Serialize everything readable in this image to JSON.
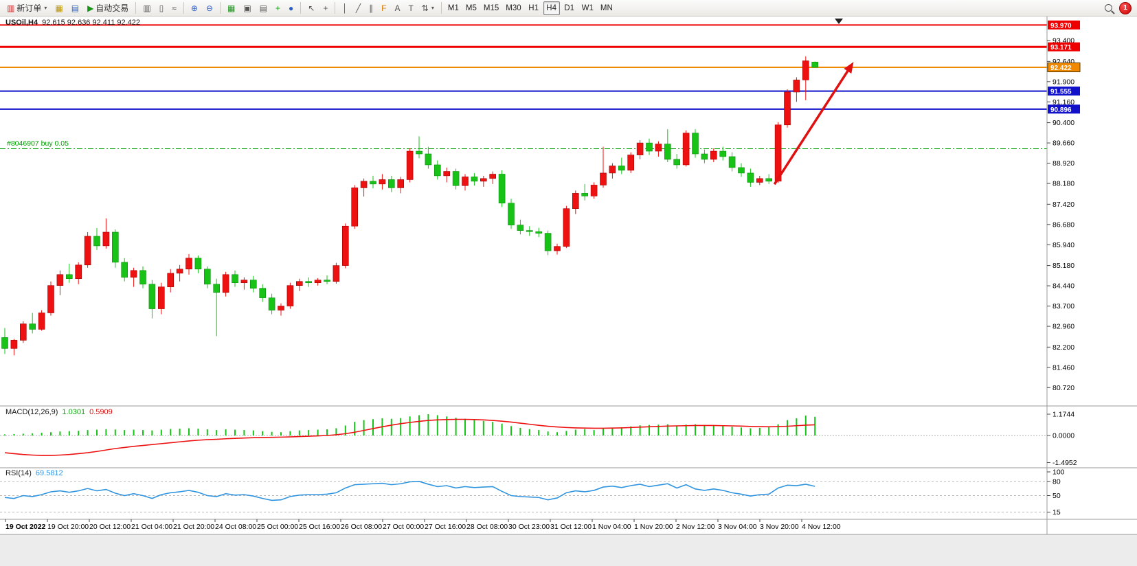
{
  "toolbar": {
    "new_order_label": "新订单",
    "auto_trading_label": "自动交易",
    "timeframes": [
      "M1",
      "M5",
      "M15",
      "M30",
      "H1",
      "H4",
      "D1",
      "W1",
      "MN"
    ],
    "active_timeframe": "H4",
    "notification_count": "1",
    "icons": {
      "new_order": "▥",
      "profile": "▦",
      "market_watch": "▤",
      "auto_trading": "▶",
      "bar_chart": "▥",
      "candles": "▯",
      "line_chart": "≈",
      "zoom_in": "⊕",
      "zoom_out": "⊖",
      "tile": "▦",
      "cascade": "▣",
      "arrange": "▤",
      "new_chart": "+",
      "auto_scroll": "●",
      "cursor": "↖",
      "crosshair": "+",
      "vline": "│",
      "trendline": "╱",
      "channel": "∥",
      "fibonacci": "F",
      "text": "A",
      "label": "T",
      "arrows": "⇅",
      "caret": "▾"
    }
  },
  "chart": {
    "symbol_timeframe": "USOil,H4",
    "ohlc": "92.615 92.636 92.411 92.422",
    "position_label": "#8046907 buy 0.05",
    "macd_name": "MACD(12,26,9)",
    "macd_value": "1.0301",
    "macd_signal": "0.5909",
    "rsi_name": "RSI(14)",
    "rsi_value": "69.5812"
  },
  "chart_data": {
    "type": "candlestick",
    "symbol": "USOil",
    "timeframe": "H4",
    "title": "USOil,H4 92.615 92.636 92.411 92.422",
    "ohlc_current": {
      "open": 92.615,
      "high": 92.636,
      "low": 92.411,
      "close": 92.422
    },
    "ylim": [
      80.05,
      94.28
    ],
    "up_color": "#ee1111",
    "down_color": "#17c317",
    "candles": [
      [
        82.55,
        82.9,
        81.95,
        82.15
      ],
      [
        82.15,
        82.5,
        81.9,
        82.45
      ],
      [
        82.45,
        83.15,
        82.35,
        83.05
      ],
      [
        83.05,
        83.45,
        82.7,
        82.85
      ],
      [
        82.85,
        83.55,
        82.8,
        83.45
      ],
      [
        83.45,
        84.6,
        83.35,
        84.45
      ],
      [
        84.45,
        85.0,
        84.1,
        84.85
      ],
      [
        84.85,
        85.25,
        84.55,
        84.7
      ],
      [
        84.7,
        85.3,
        84.5,
        85.2
      ],
      [
        85.2,
        86.4,
        85.1,
        86.25
      ],
      [
        86.25,
        86.55,
        85.75,
        85.9
      ],
      [
        85.9,
        86.9,
        85.8,
        86.4
      ],
      [
        86.4,
        86.5,
        85.1,
        85.3
      ],
      [
        85.3,
        85.45,
        84.6,
        84.75
      ],
      [
        84.75,
        85.1,
        84.4,
        85.0
      ],
      [
        85.0,
        85.15,
        84.35,
        84.5
      ],
      [
        84.5,
        84.65,
        83.25,
        83.6
      ],
      [
        83.6,
        84.55,
        83.4,
        84.4
      ],
      [
        84.4,
        85.05,
        84.2,
        84.9
      ],
      [
        84.9,
        85.2,
        84.6,
        85.05
      ],
      [
        85.05,
        85.6,
        84.85,
        85.45
      ],
      [
        85.45,
        85.55,
        84.9,
        85.05
      ],
      [
        85.05,
        85.15,
        84.35,
        84.5
      ],
      [
        84.5,
        84.7,
        82.6,
        84.2
      ],
      [
        84.2,
        84.95,
        84.05,
        84.85
      ],
      [
        84.85,
        85.0,
        84.4,
        84.55
      ],
      [
        84.55,
        84.75,
        84.3,
        84.65
      ],
      [
        84.65,
        84.8,
        84.2,
        84.35
      ],
      [
        84.35,
        84.5,
        83.85,
        84.0
      ],
      [
        84.0,
        84.15,
        83.4,
        83.55
      ],
      [
        83.55,
        83.8,
        83.35,
        83.7
      ],
      [
        83.7,
        84.55,
        83.6,
        84.45
      ],
      [
        84.45,
        84.7,
        84.25,
        84.6
      ],
      [
        84.6,
        84.75,
        84.4,
        84.55
      ],
      [
        84.55,
        84.72,
        84.45,
        84.65
      ],
      [
        84.65,
        84.82,
        84.5,
        84.6
      ],
      [
        84.6,
        85.28,
        84.52,
        85.18
      ],
      [
        85.18,
        86.72,
        85.08,
        86.62
      ],
      [
        86.62,
        88.12,
        86.52,
        88.02
      ],
      [
        88.02,
        88.36,
        87.7,
        88.26
      ],
      [
        88.26,
        88.46,
        88.0,
        88.16
      ],
      [
        88.16,
        88.52,
        87.96,
        88.32
      ],
      [
        88.32,
        88.46,
        87.86,
        88.02
      ],
      [
        88.02,
        88.42,
        87.82,
        88.32
      ],
      [
        88.32,
        89.46,
        88.22,
        89.36
      ],
      [
        89.36,
        89.9,
        89.1,
        89.26
      ],
      [
        89.26,
        89.52,
        88.72,
        88.86
      ],
      [
        88.86,
        89.02,
        88.32,
        88.46
      ],
      [
        88.46,
        88.76,
        88.22,
        88.62
      ],
      [
        88.62,
        88.72,
        87.96,
        88.1
      ],
      [
        88.1,
        88.52,
        87.92,
        88.42
      ],
      [
        88.42,
        88.56,
        88.1,
        88.26
      ],
      [
        88.26,
        88.46,
        88.06,
        88.36
      ],
      [
        88.36,
        88.62,
        88.16,
        88.52
      ],
      [
        88.52,
        88.66,
        87.32,
        87.46
      ],
      [
        87.46,
        87.62,
        86.52,
        86.66
      ],
      [
        86.66,
        86.86,
        86.32,
        86.46
      ],
      [
        86.46,
        86.62,
        86.26,
        86.42
      ],
      [
        86.42,
        86.56,
        86.22,
        86.36
      ],
      [
        86.36,
        86.46,
        85.56,
        85.72
      ],
      [
        85.72,
        85.98,
        85.58,
        85.88
      ],
      [
        85.88,
        87.36,
        85.82,
        87.26
      ],
      [
        87.26,
        87.92,
        87.06,
        87.82
      ],
      [
        87.82,
        88.16,
        87.56,
        87.72
      ],
      [
        87.72,
        88.22,
        87.62,
        88.12
      ],
      [
        88.12,
        89.52,
        88.02,
        88.56
      ],
      [
        88.56,
        88.92,
        88.36,
        88.82
      ],
      [
        88.82,
        89.12,
        88.52,
        88.66
      ],
      [
        88.66,
        89.32,
        88.56,
        89.22
      ],
      [
        89.22,
        89.76,
        89.06,
        89.66
      ],
      [
        89.66,
        89.82,
        89.22,
        89.36
      ],
      [
        89.36,
        89.72,
        89.16,
        89.62
      ],
      [
        89.62,
        90.16,
        88.96,
        89.06
      ],
      [
        89.06,
        89.26,
        88.72,
        88.86
      ],
      [
        88.86,
        90.12,
        88.8,
        90.02
      ],
      [
        90.02,
        90.16,
        89.12,
        89.26
      ],
      [
        89.26,
        89.42,
        88.92,
        89.06
      ],
      [
        89.06,
        89.46,
        88.96,
        89.36
      ],
      [
        89.36,
        89.52,
        89.02,
        89.16
      ],
      [
        89.16,
        89.32,
        88.62,
        88.76
      ],
      [
        88.76,
        88.92,
        88.42,
        88.56
      ],
      [
        88.56,
        88.72,
        88.06,
        88.22
      ],
      [
        88.22,
        88.46,
        88.12,
        88.36
      ],
      [
        88.36,
        88.52,
        88.16,
        88.26
      ],
      [
        88.26,
        90.42,
        88.2,
        90.32
      ],
      [
        90.32,
        91.62,
        90.22,
        91.52
      ],
      [
        91.52,
        92.06,
        91.16,
        91.96
      ],
      [
        91.96,
        92.82,
        91.22,
        92.66
      ],
      [
        92.615,
        92.636,
        92.411,
        92.422
      ]
    ],
    "hlines": [
      {
        "price": 93.97,
        "label": "93.970",
        "color": "#ee0000",
        "width": 2
      },
      {
        "price": 93.171,
        "label": "93.171",
        "color": "#ee0000",
        "width": 3
      },
      {
        "price": 92.422,
        "label": "92.422",
        "color": "#f08800",
        "width": 2,
        "current": true
      },
      {
        "price": 91.555,
        "label": "91.555",
        "color": "#1111cc",
        "width": 2
      },
      {
        "price": 90.896,
        "label": "90.896",
        "color": "#1111cc",
        "width": 2
      }
    ],
    "position_line": {
      "price": 89.45,
      "label": "#8046907 buy 0.05",
      "color": "#00a000"
    },
    "price_ticks": [
      "93.400",
      "92.640",
      "91.900",
      "91.160",
      "90.400",
      "89.660",
      "88.920",
      "88.180",
      "87.420",
      "86.680",
      "85.940",
      "85.180",
      "84.440",
      "83.700",
      "82.960",
      "82.200",
      "81.460",
      "80.720"
    ],
    "trend_arrow": {
      "from_bar": 83.6,
      "from_price": 88.15,
      "to_bar": 92.2,
      "to_price": 92.62,
      "color": "#e01010"
    },
    "shift_marker_bar": 90.6,
    "macd": {
      "title": "MACD(12,26,9)",
      "value": 1.0301,
      "signal_value": 0.5909,
      "hist_color": "#17c317",
      "signal_color": "#ee1111",
      "axis": [
        {
          "label": "1.1744",
          "value": 1.1744
        },
        {
          "label": "0.0000",
          "value": 0
        },
        {
          "label": "-1.4952",
          "value": -1.4952
        }
      ],
      "histogram": [
        0.06,
        0.08,
        0.1,
        0.12,
        0.15,
        0.18,
        0.22,
        0.24,
        0.26,
        0.3,
        0.32,
        0.35,
        0.33,
        0.3,
        0.32,
        0.3,
        0.28,
        0.32,
        0.36,
        0.38,
        0.4,
        0.38,
        0.34,
        0.3,
        0.34,
        0.32,
        0.3,
        0.28,
        0.24,
        0.2,
        0.18,
        0.24,
        0.28,
        0.3,
        0.32,
        0.34,
        0.4,
        0.55,
        0.75,
        0.85,
        0.9,
        0.95,
        0.92,
        0.96,
        1.05,
        1.12,
        1.1744,
        1.12,
        1.05,
        0.98,
        0.92,
        0.85,
        0.8,
        0.75,
        0.65,
        0.52,
        0.42,
        0.35,
        0.3,
        0.22,
        0.18,
        0.25,
        0.32,
        0.35,
        0.3,
        0.38,
        0.42,
        0.45,
        0.5,
        0.56,
        0.58,
        0.6,
        0.62,
        0.55,
        0.6,
        0.62,
        0.58,
        0.55,
        0.52,
        0.48,
        0.44,
        0.4,
        0.42,
        0.45,
        0.62,
        0.85,
        0.95,
        1.1,
        1.0301
      ],
      "signal": [
        -0.95,
        -1.0,
        -1.05,
        -1.08,
        -1.1,
        -1.1,
        -1.08,
        -1.05,
        -1.0,
        -0.95,
        -0.88,
        -0.8,
        -0.72,
        -0.66,
        -0.6,
        -0.55,
        -0.5,
        -0.45,
        -0.4,
        -0.35,
        -0.3,
        -0.26,
        -0.23,
        -0.21,
        -0.18,
        -0.16,
        -0.14,
        -0.12,
        -0.11,
        -0.1,
        -0.09,
        -0.08,
        -0.06,
        -0.04,
        -0.02,
        0.0,
        0.04,
        0.1,
        0.18,
        0.28,
        0.38,
        0.48,
        0.57,
        0.65,
        0.72,
        0.78,
        0.83,
        0.86,
        0.88,
        0.89,
        0.89,
        0.88,
        0.86,
        0.83,
        0.79,
        0.74,
        0.68,
        0.62,
        0.56,
        0.51,
        0.47,
        0.44,
        0.42,
        0.41,
        0.4,
        0.4,
        0.41,
        0.42,
        0.44,
        0.46,
        0.48,
        0.5,
        0.52,
        0.53,
        0.54,
        0.55,
        0.55,
        0.55,
        0.54,
        0.53,
        0.52,
        0.5,
        0.49,
        0.48,
        0.49,
        0.51,
        0.54,
        0.57,
        0.5909
      ]
    },
    "rsi": {
      "title": "RSI(14)",
      "value": 69.5812,
      "color": "#2f94e0",
      "levels": [
        80,
        50,
        15
      ],
      "axis": [
        {
          "label": "100",
          "value": 100
        },
        {
          "label": "80",
          "value": 80
        },
        {
          "label": "50",
          "value": 50
        },
        {
          "label": "15",
          "value": 15
        }
      ],
      "series": [
        46,
        44,
        50,
        48,
        52,
        58,
        60,
        57,
        60,
        65,
        60,
        63,
        55,
        50,
        54,
        50,
        44,
        52,
        56,
        58,
        61,
        57,
        50,
        48,
        54,
        51,
        52,
        49,
        44,
        40,
        41,
        48,
        51,
        52,
        52,
        53,
        56,
        66,
        73,
        74,
        75,
        76,
        73,
        75,
        79,
        80,
        74,
        69,
        71,
        66,
        69,
        67,
        68,
        69,
        59,
        50,
        48,
        47,
        46,
        41,
        45,
        56,
        60,
        58,
        61,
        68,
        70,
        67,
        71,
        74,
        69,
        72,
        75,
        66,
        73,
        64,
        61,
        64,
        61,
        56,
        53,
        49,
        52,
        53,
        66,
        72,
        71,
        74,
        69.5812
      ]
    },
    "time_labels": [
      "19 Oct 2022",
      "19 Oct 20:00",
      "20 Oct 12:00",
      "21 Oct 04:00",
      "21 Oct 20:00",
      "24 Oct 08:00",
      "25 Oct 00:00",
      "25 Oct 16:00",
      "26 Oct 08:00",
      "27 Oct 00:00",
      "27 Oct 16:00",
      "28 Oct 08:00",
      "30 Oct 23:00",
      "31 Oct 12:00",
      "1 Nov 04:00",
      "1 Nov 20:00",
      "2 Nov 12:00",
      "3 Nov 04:00",
      "3 Nov 20:00",
      "4 Nov 12:00"
    ]
  }
}
